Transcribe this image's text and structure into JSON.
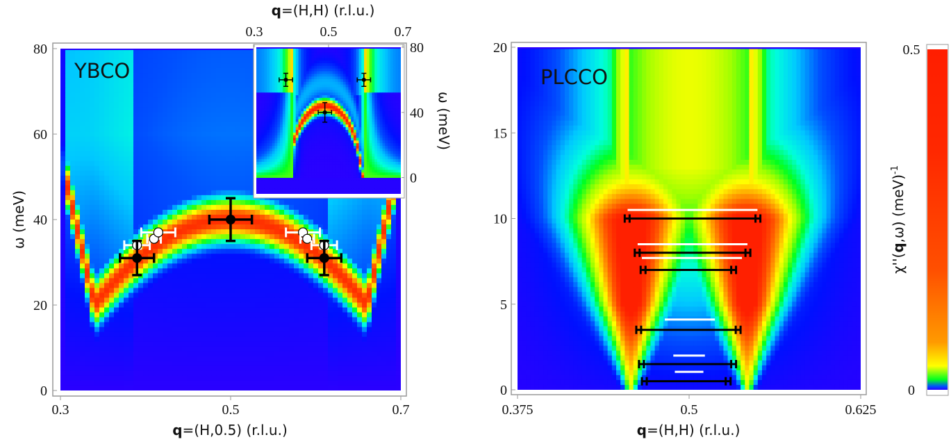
{
  "colors": {
    "colormap": [
      "#2a00ff",
      "#0010ff",
      "#0050ff",
      "#00c8ff",
      "#00ffdc",
      "#00ff20",
      "#a0ff00",
      "#ffff00",
      "#ffa000",
      "#ff5000",
      "#ff2000"
    ],
    "axis": "#999999",
    "black_marker": "#000000",
    "white_marker": "#ffffff"
  },
  "chart_data": [
    {
      "type": "heatmap",
      "panel": "YBCO",
      "title": "YBCO",
      "xlabel_bold": "q",
      "xlabel_rest": "=(H,0.5) (r.l.u.)",
      "ylabel": "ω (meV)",
      "xlim": [
        0.3,
        0.7
      ],
      "ylim": [
        0,
        80
      ],
      "xticks": [
        "0.3",
        "0.5",
        "0.7"
      ],
      "xtick_values": [
        0.3,
        0.5,
        0.7
      ],
      "yticks": [
        "0",
        "20",
        "40",
        "60",
        "80"
      ],
      "ytick_values": [
        0,
        20,
        40,
        60,
        80
      ],
      "dispersion": {
        "center_q": 0.5,
        "peak_energy": 40,
        "edge_energy": 20,
        "edge_q": [
          0.34,
          0.66
        ]
      },
      "black_points": [
        {
          "q": 0.5,
          "e": 40,
          "dq": 0.025,
          "de": 5
        },
        {
          "q": 0.39,
          "e": 31,
          "dq": 0.02,
          "de": 4
        },
        {
          "q": 0.61,
          "e": 31,
          "dq": 0.02,
          "de": 4
        }
      ],
      "white_points": [
        {
          "q": 0.39,
          "e": 34,
          "dq": 0.015,
          "de": 0.8
        },
        {
          "q": 0.41,
          "e": 35.5,
          "dq": 0.008,
          "de": 0
        },
        {
          "q": 0.415,
          "e": 37,
          "dq": 0.02,
          "de": 0
        },
        {
          "q": 0.585,
          "e": 37,
          "dq": 0.02,
          "de": 0
        },
        {
          "q": 0.59,
          "e": 35.5,
          "dq": 0.008,
          "de": 0
        },
        {
          "q": 0.61,
          "e": 34,
          "dq": 0.015,
          "de": 0.8
        }
      ],
      "inset": {
        "xlabel_bold": "q",
        "xlabel_rest": "=(H,H) (r.l.u.)",
        "ylabel": "ω (meV)",
        "xlim": [
          0.3,
          0.7
        ],
        "ylim": [
          -10,
          80
        ],
        "xticks": [
          "0.3",
          "0.5",
          "0.7"
        ],
        "xtick_values": [
          0.3,
          0.5,
          0.7
        ],
        "yticks": [
          "0",
          "40",
          "80"
        ],
        "ytick_values": [
          0,
          40,
          80
        ],
        "black_points": [
          {
            "q": 0.385,
            "e": 60,
            "dq": 0.018,
            "de": 4
          },
          {
            "q": 0.49,
            "e": 40,
            "dq": 0.018,
            "de": 6
          },
          {
            "q": 0.595,
            "e": 60,
            "dq": 0.018,
            "de": 4
          }
        ]
      }
    },
    {
      "type": "heatmap",
      "panel": "PLCCO",
      "title": "PLCCO",
      "xlabel_bold": "q",
      "xlabel_rest": "=(H,H) (r.l.u.)",
      "ylabel": "",
      "xlim": [
        0.375,
        0.625
      ],
      "ylim": [
        0,
        20
      ],
      "xticks": [
        "0.375",
        "0.5",
        "0.625"
      ],
      "xtick_values": [
        0.375,
        0.5,
        0.625
      ],
      "yticks": [
        "0",
        "5",
        "10",
        "15",
        "20"
      ],
      "ytick_values": [
        0,
        5,
        10,
        15,
        20
      ],
      "black_bars": [
        {
          "e": 10,
          "q1": 0.4531,
          "q2": 0.5519
        },
        {
          "e": 8,
          "q1": 0.4604,
          "q2": 0.5446
        },
        {
          "e": 7,
          "q1": 0.4647,
          "q2": 0.5342
        },
        {
          "e": 3.5,
          "q1": 0.4615,
          "q2": 0.5375
        },
        {
          "e": 1.5,
          "q1": 0.4635,
          "q2": 0.5342
        },
        {
          "e": 0.5,
          "q1": 0.4656,
          "q2": 0.5302
        }
      ],
      "white_bars": [
        {
          "e": 10.5,
          "q1": 0.4552,
          "q2": 0.5498
        },
        {
          "e": 8.5,
          "q1": 0.4625,
          "q2": 0.5425
        },
        {
          "e": 7.7,
          "q1": 0.4656,
          "q2": 0.5385
        },
        {
          "e": 4.1,
          "q1": 0.4823,
          "q2": 0.5188
        },
        {
          "e": 2,
          "q1": 0.4885,
          "q2": 0.5115
        },
        {
          "e": 1.05,
          "q1": 0.4896,
          "q2": 0.5104
        }
      ]
    },
    {
      "type": "colorbar",
      "label_main": "χ''(",
      "label_bold": "q",
      "label_rest": ",ω) (meV)",
      "label_sup": "-1",
      "range": [
        0,
        0.5
      ],
      "ticks": [
        "0",
        "0.5"
      ],
      "tick_values": [
        0,
        0.5
      ]
    }
  ]
}
